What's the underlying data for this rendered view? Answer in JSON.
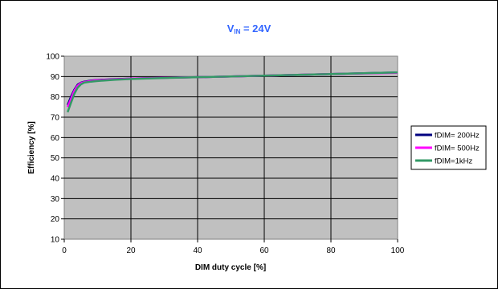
{
  "chart_data": {
    "type": "line",
    "title_main": "V",
    "title_sub": "IN",
    "title_rest": " = 24V",
    "xlabel": "DIM duty cycle  [%]",
    "ylabel": "Efficiency  [%]",
    "xlim": [
      0,
      100
    ],
    "ylim": [
      10,
      100
    ],
    "x_ticks": [
      "0",
      "20",
      "40",
      "60",
      "80",
      "100"
    ],
    "y_ticks": [
      "10",
      "20",
      "30",
      "40",
      "50",
      "60",
      "70",
      "80",
      "90",
      "100"
    ],
    "grid": "horizontal-and-vertical",
    "legend_position": "right",
    "series": [
      {
        "name": "fDIM= 200Hz",
        "color": "#000080",
        "x": [
          1,
          2,
          3,
          4,
          5,
          6,
          8,
          10,
          15,
          20,
          30,
          40,
          50,
          60,
          70,
          80,
          90,
          100
        ],
        "y": [
          76,
          80,
          83.5,
          86,
          87,
          87.5,
          88,
          88.3,
          88.7,
          89,
          89.4,
          89.7,
          90,
          90.4,
          90.8,
          91.2,
          91.6,
          92
        ]
      },
      {
        "name": "fDIM= 500Hz",
        "color": "#ff00ff",
        "x": [
          1,
          2,
          3,
          4,
          5,
          6,
          8,
          10,
          15,
          20,
          30,
          40,
          50,
          60,
          70,
          80,
          90,
          100
        ],
        "y": [
          75,
          79,
          83,
          85.5,
          86.8,
          87.3,
          87.8,
          88.2,
          88.6,
          89,
          89.4,
          89.7,
          90,
          90.4,
          90.8,
          91.2,
          91.5,
          91.8
        ]
      },
      {
        "name": "fDIM=1kHz",
        "color": "#339966",
        "x": [
          1,
          2,
          3,
          4,
          5,
          6,
          8,
          10,
          15,
          20,
          30,
          40,
          50,
          60,
          70,
          80,
          90,
          100
        ],
        "y": [
          72.5,
          77,
          81.5,
          84.5,
          86.2,
          87,
          87.5,
          87.8,
          88.4,
          88.8,
          89.3,
          89.7,
          90,
          90.4,
          90.8,
          91.2,
          91.6,
          92
        ]
      }
    ]
  }
}
